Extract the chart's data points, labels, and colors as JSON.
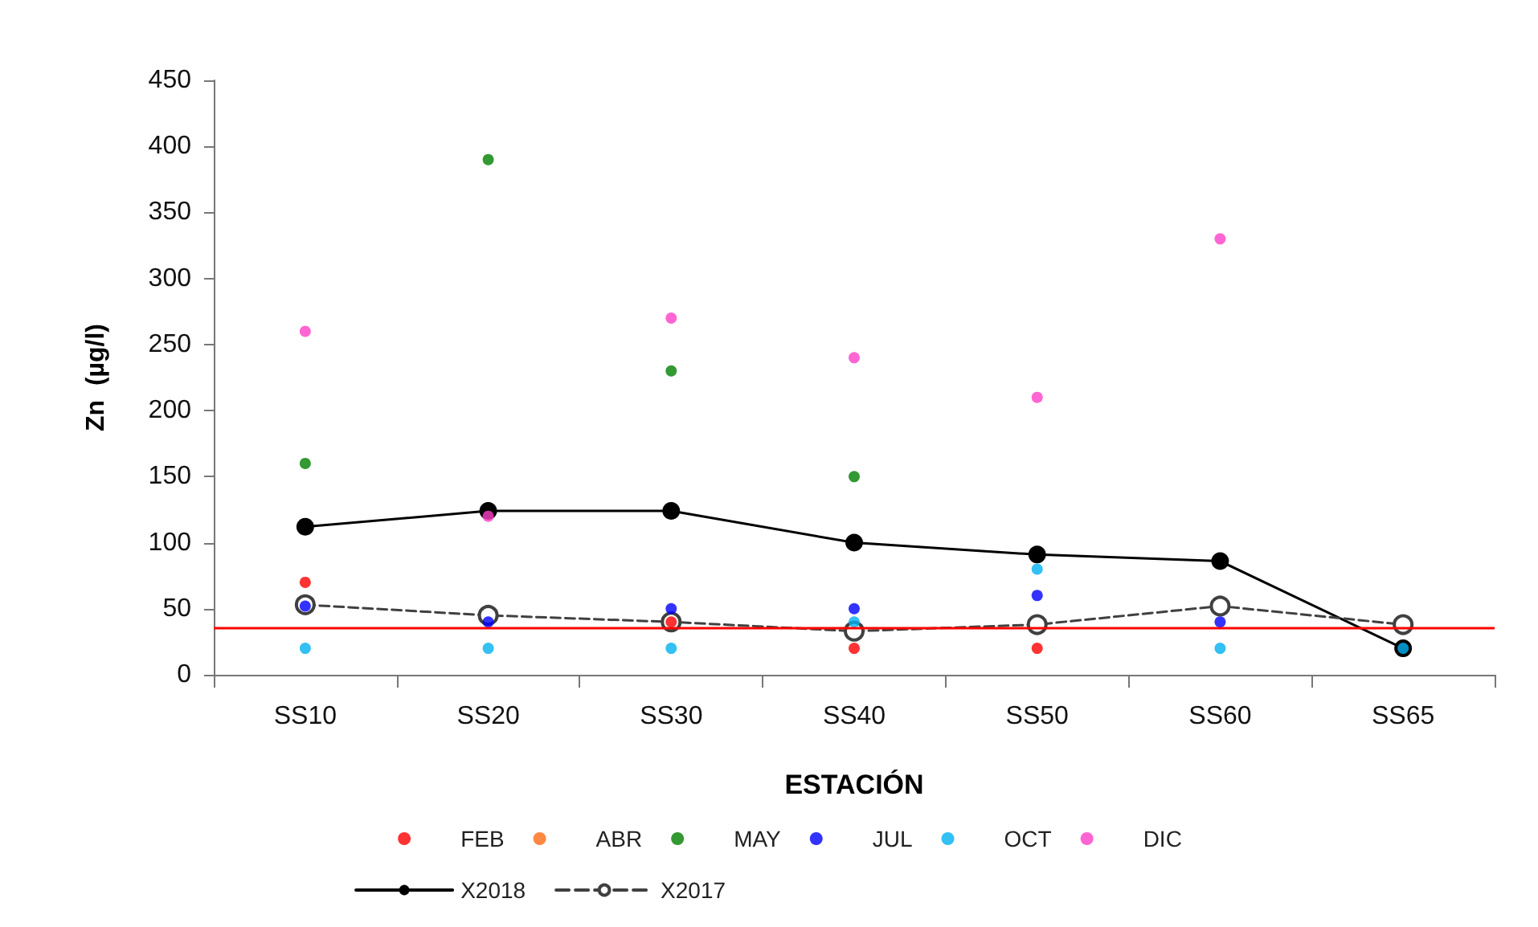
{
  "chart_data": {
    "type": "scatter",
    "xlabel": "ESTACIÓN",
    "ylabel": "Zn  (µg/l)",
    "categories": [
      "SS10",
      "SS20",
      "SS30",
      "SS40",
      "SS50",
      "SS60",
      "SS65"
    ],
    "ylim": [
      0,
      450
    ],
    "yticks": [
      0,
      50,
      100,
      150,
      200,
      250,
      300,
      350,
      400,
      450
    ],
    "grid": false,
    "legend": "bottom",
    "marker": "circle",
    "series": [
      {
        "name": "FEB",
        "color": "#ff0000",
        "values": [
          70,
          null,
          40,
          20,
          20,
          null,
          null
        ]
      },
      {
        "name": "ABR",
        "color": "#ff6a13",
        "values": [
          null,
          null,
          null,
          null,
          null,
          null,
          null
        ]
      },
      {
        "name": "MAY",
        "color": "#008000",
        "values": [
          160,
          390,
          230,
          150,
          null,
          null,
          null
        ]
      },
      {
        "name": "JUL",
        "color": "#0000ff",
        "values": [
          52,
          40,
          50,
          50,
          60,
          40,
          null
        ]
      },
      {
        "name": "OCT",
        "color": "#00b0f0",
        "values": [
          20,
          20,
          20,
          40,
          80,
          20,
          20
        ]
      },
      {
        "name": "DIC",
        "color": "#ff40c8",
        "values": [
          260,
          120,
          270,
          240,
          210,
          330,
          null
        ]
      },
      {
        "name": "X2018",
        "type": "line",
        "color": "#000000",
        "line_style": "solid",
        "marker": "circle",
        "values": [
          112,
          124,
          124,
          100,
          91,
          86,
          20
        ]
      },
      {
        "name": "X2017",
        "type": "line",
        "color": "#404040",
        "line_style": "dashed",
        "marker": "emptyCircle",
        "values": [
          53,
          45,
          40,
          33,
          38,
          52,
          38
        ]
      }
    ],
    "ref_lines": [
      {
        "axis": "y",
        "value": 35,
        "color": "#ff0000"
      }
    ]
  }
}
